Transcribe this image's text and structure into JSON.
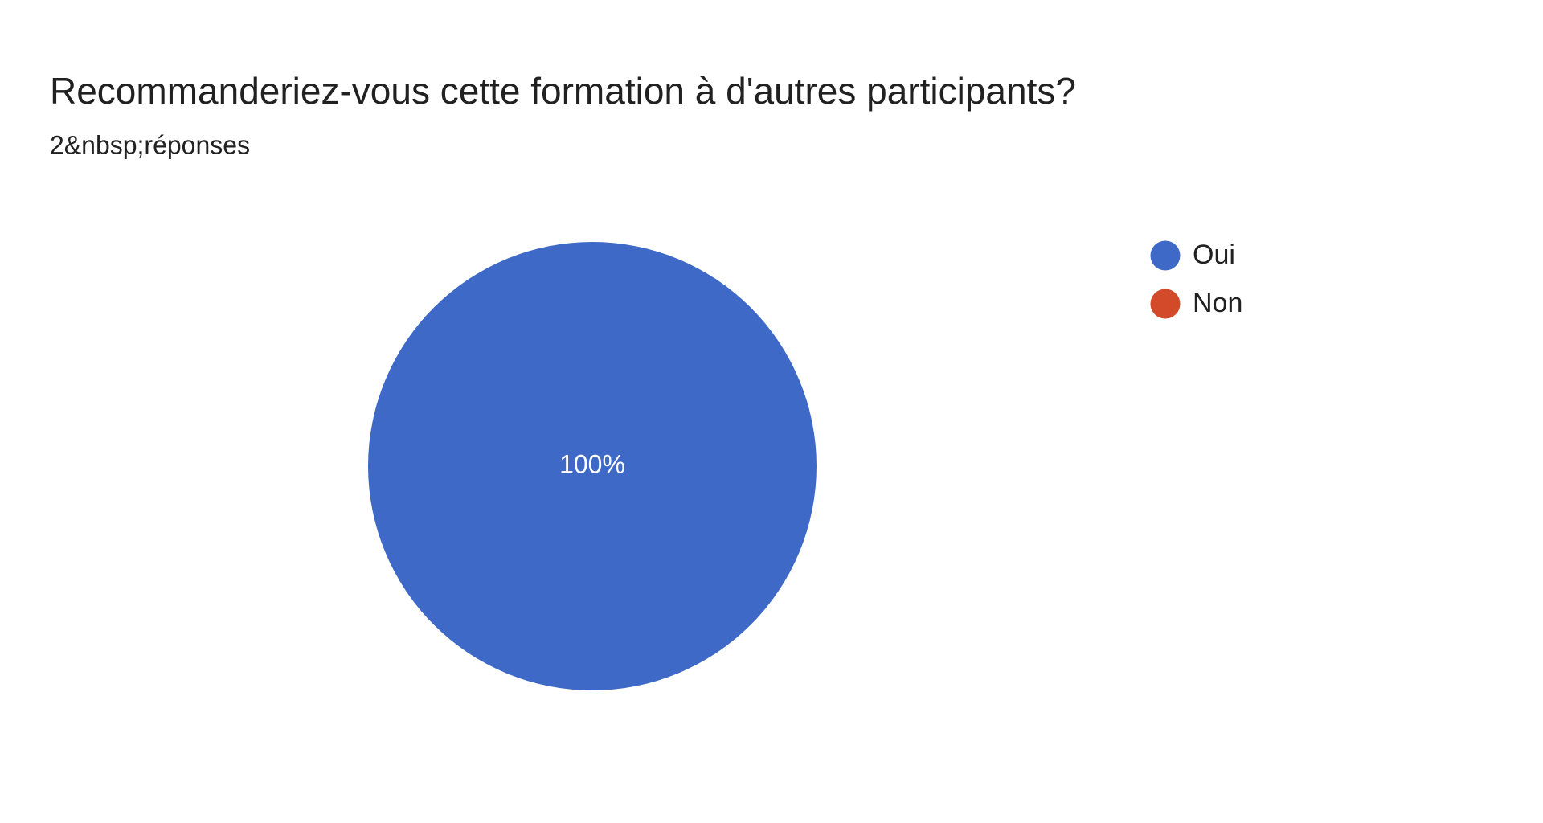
{
  "chart_data": {
    "type": "pie",
    "title": "Recommanderiez-vous cette formation à d'autres participants?",
    "subtitle": "2&nbsp;réponses",
    "categories": [
      "Oui",
      "Non"
    ],
    "values": [
      100,
      0
    ],
    "value_labels": [
      "100%",
      null
    ],
    "colors": [
      "#3e69c6",
      "#d24a2a"
    ],
    "legend": "top-right"
  }
}
